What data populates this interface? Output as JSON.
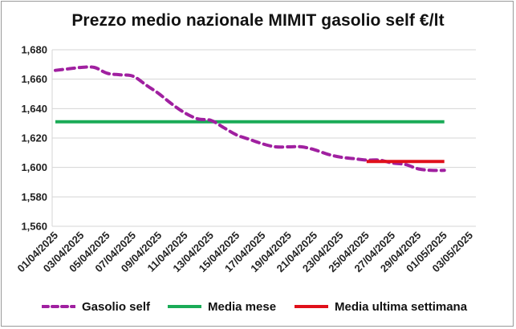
{
  "chart_data": {
    "type": "line",
    "title": "Prezzo medio nazionale MIMIT gasolio self €/lt",
    "xlabel": "",
    "ylabel": "",
    "ylim": [
      1.56,
      1.68
    ],
    "yticks": [
      "1,560",
      "1,580",
      "1,600",
      "1,620",
      "1,640",
      "1,660",
      "1,680"
    ],
    "ytick_values": [
      1.56,
      1.58,
      1.6,
      1.62,
      1.64,
      1.66,
      1.68
    ],
    "xticks": [
      "01/04/2025",
      "03/04/2025",
      "05/04/2025",
      "07/04/2025",
      "09/04/2025",
      "11/04/2025",
      "13/04/2025",
      "15/04/2025",
      "17/04/2025",
      "19/04/2025",
      "21/04/2025",
      "23/04/2025",
      "25/04/2025",
      "27/04/2025",
      "29/04/2025",
      "01/05/2025",
      "03/05/2025"
    ],
    "grid": true,
    "legend_position": "bottom",
    "series": [
      {
        "name": "Gasolio self",
        "color": "#a020a0",
        "style": "dashed",
        "x": [
          "01/04/2025",
          "02/04/2025",
          "03/04/2025",
          "04/04/2025",
          "05/04/2025",
          "06/04/2025",
          "07/04/2025",
          "08/04/2025",
          "09/04/2025",
          "10/04/2025",
          "11/04/2025",
          "12/04/2025",
          "13/04/2025",
          "14/04/2025",
          "15/04/2025",
          "16/04/2025",
          "17/04/2025",
          "18/04/2025",
          "19/04/2025",
          "20/04/2025",
          "21/04/2025",
          "22/04/2025",
          "23/04/2025",
          "24/04/2025",
          "25/04/2025",
          "26/04/2025",
          "27/04/2025",
          "28/04/2025",
          "29/04/2025",
          "30/04/2025",
          "01/05/2025"
        ],
        "values": [
          1.666,
          1.667,
          1.668,
          1.668,
          1.664,
          1.663,
          1.662,
          1.656,
          1.65,
          1.643,
          1.637,
          1.633,
          1.632,
          1.627,
          1.622,
          1.619,
          1.616,
          1.614,
          1.614,
          1.614,
          1.612,
          1.609,
          1.607,
          1.606,
          1.605,
          1.605,
          1.603,
          1.602,
          1.599,
          1.598,
          1.598
        ]
      },
      {
        "name": "Media mese",
        "color": "#1aab57",
        "style": "solid",
        "x": [
          "01/04/2025",
          "01/05/2025"
        ],
        "values": [
          1.631,
          1.631
        ]
      },
      {
        "name": "Media ultima settimana",
        "color": "#e0101a",
        "style": "solid",
        "x": [
          "25/04/2025",
          "01/05/2025"
        ],
        "values": [
          1.604,
          1.604
        ]
      }
    ]
  }
}
